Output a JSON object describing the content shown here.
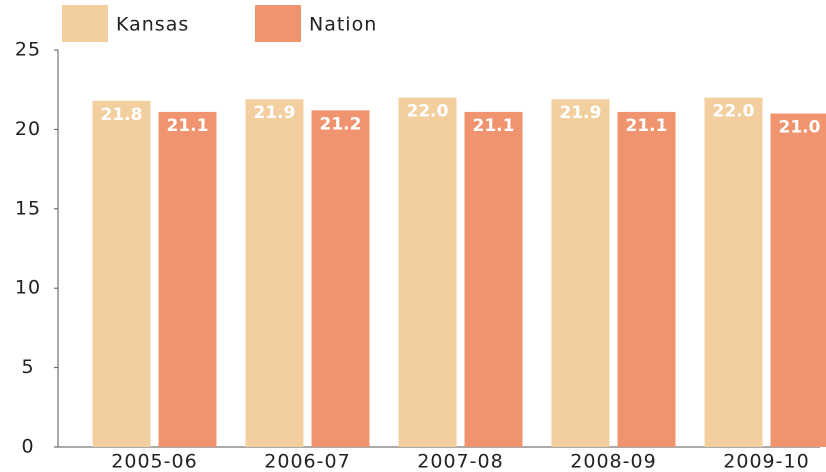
{
  "chart_data": {
    "type": "bar",
    "categories": [
      "2005-06",
      "2006-07",
      "2007-08",
      "2008-09",
      "2009-10"
    ],
    "series": [
      {
        "name": "Kansas",
        "color": "#f3cf9f",
        "values": [
          21.8,
          21.9,
          22.0,
          21.9,
          22.0
        ],
        "value_labels": [
          "21.8",
          "21.9",
          "22.0",
          "21.9",
          "22.0"
        ]
      },
      {
        "name": "Nation",
        "color": "#f0946f",
        "values": [
          21.1,
          21.2,
          21.1,
          21.1,
          21.0
        ],
        "value_labels": [
          "21.1",
          "21.2",
          "21.1",
          "21.1",
          "21.0"
        ]
      }
    ],
    "ylim": [
      0,
      25
    ],
    "yticks": [
      0,
      5,
      10,
      15,
      20,
      25
    ],
    "grid": false,
    "legend": "top"
  }
}
